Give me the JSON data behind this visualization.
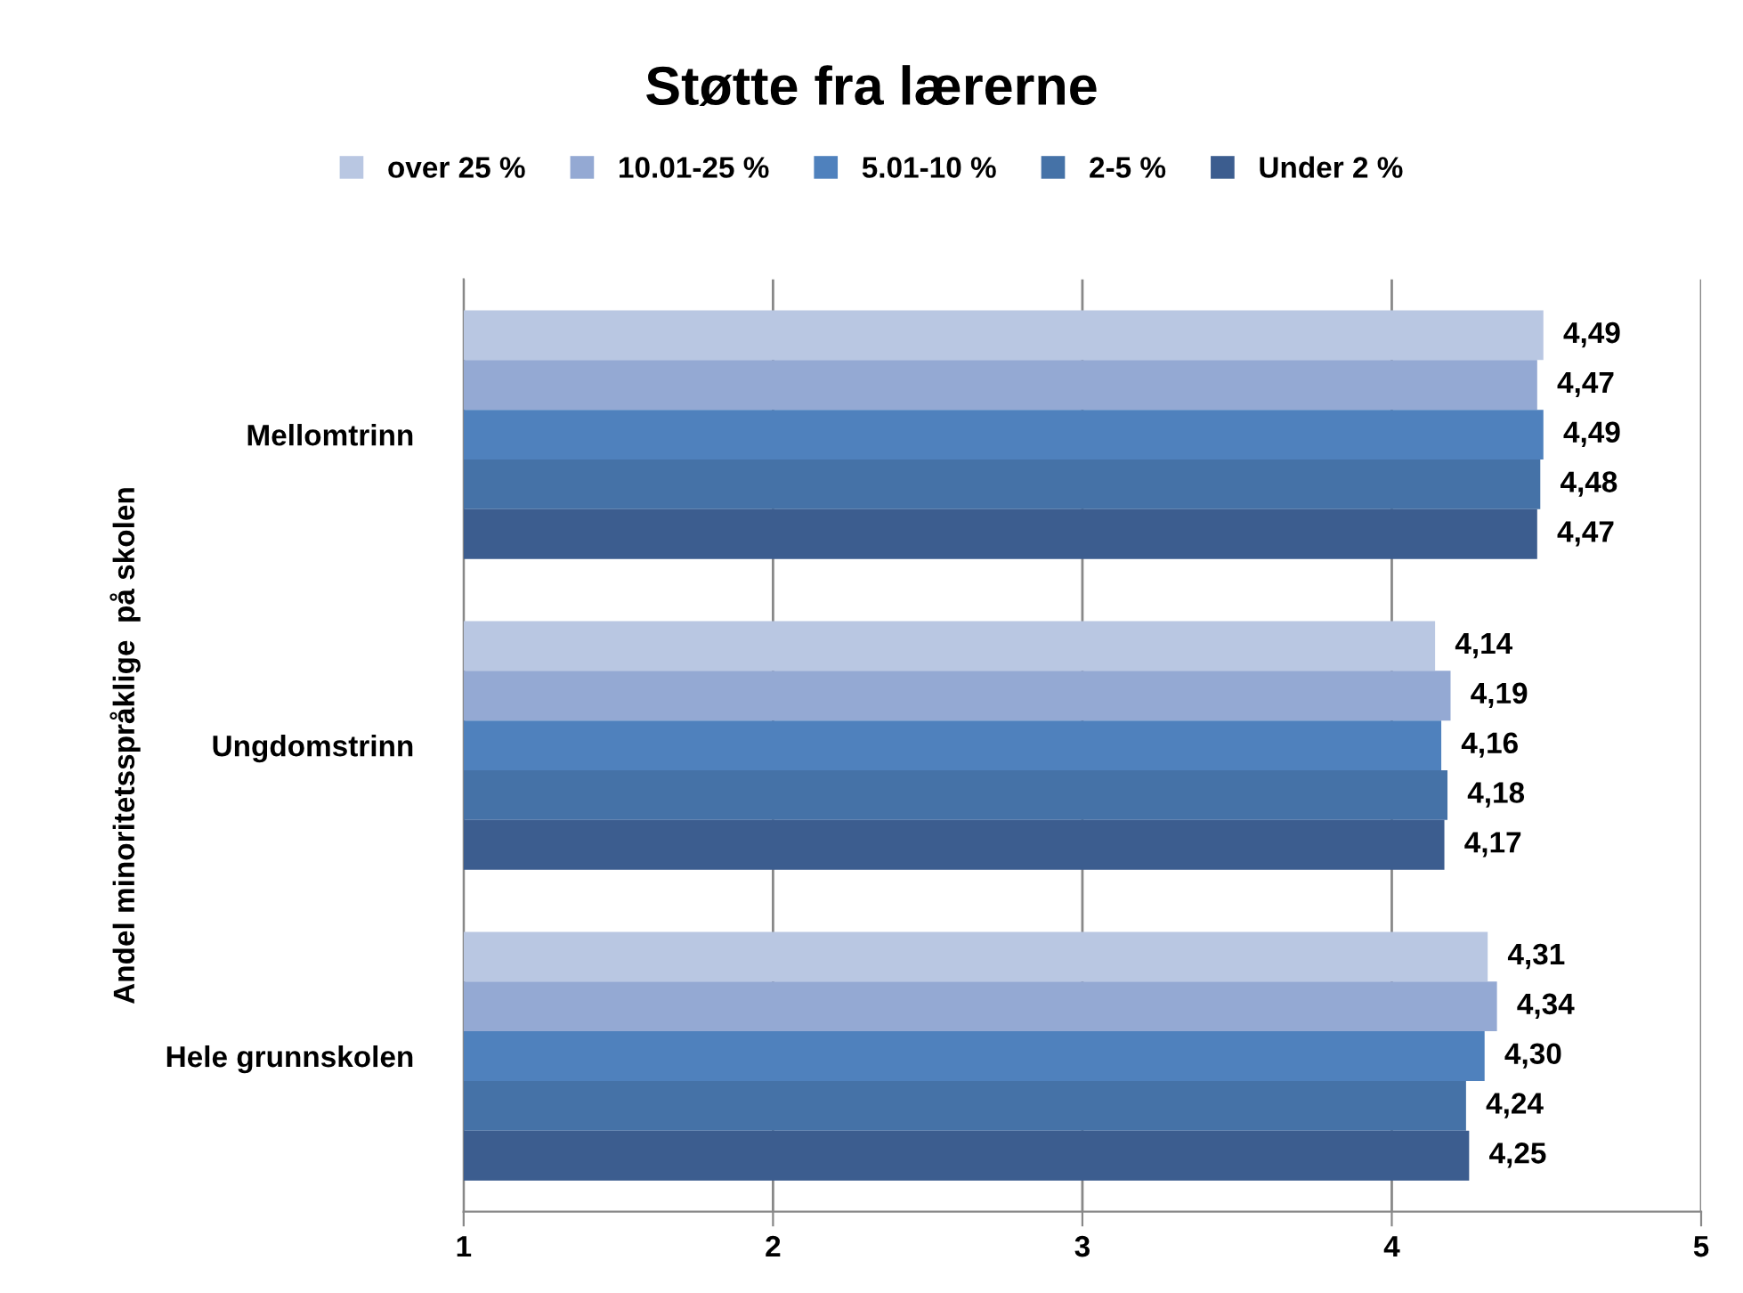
{
  "chart_data": {
    "type": "bar",
    "orientation": "horizontal",
    "title": "Støtte fra lærerne",
    "ylabel": "Andel minoritetsspråklige  på skolen",
    "categories": [
      "Mellomtrinn",
      "Ungdomstrinn",
      "Hele grunnskolen"
    ],
    "series": [
      {
        "name": "over 25 %",
        "color": "#b9c7e2",
        "values": [
          4.49,
          4.14,
          4.31
        ],
        "value_labels": [
          "4,49",
          "4,14",
          "4,31"
        ]
      },
      {
        "name": "10.01-25 %",
        "color": "#94a9d3",
        "values": [
          4.47,
          4.19,
          4.34
        ],
        "value_labels": [
          "4,47",
          "4,19",
          "4,34"
        ]
      },
      {
        "name": "5.01-10 %",
        "color": "#4f81bd",
        "values": [
          4.49,
          4.16,
          4.3
        ],
        "value_labels": [
          "4,49",
          "4,16",
          "4,30"
        ]
      },
      {
        "name": "2-5 %",
        "color": "#4572a7",
        "values": [
          4.48,
          4.18,
          4.24
        ],
        "value_labels": [
          "4,48",
          "4,18",
          "4,24"
        ]
      },
      {
        "name": "Under 2 %",
        "color": "#3c5d8f",
        "values": [
          4.47,
          4.17,
          4.25
        ],
        "value_labels": [
          "4,47",
          "4,17",
          "4,25"
        ]
      }
    ],
    "xlim": [
      1,
      5
    ],
    "xticks": [
      1,
      2,
      3,
      4,
      5
    ],
    "grid": "x",
    "legend": "top"
  }
}
